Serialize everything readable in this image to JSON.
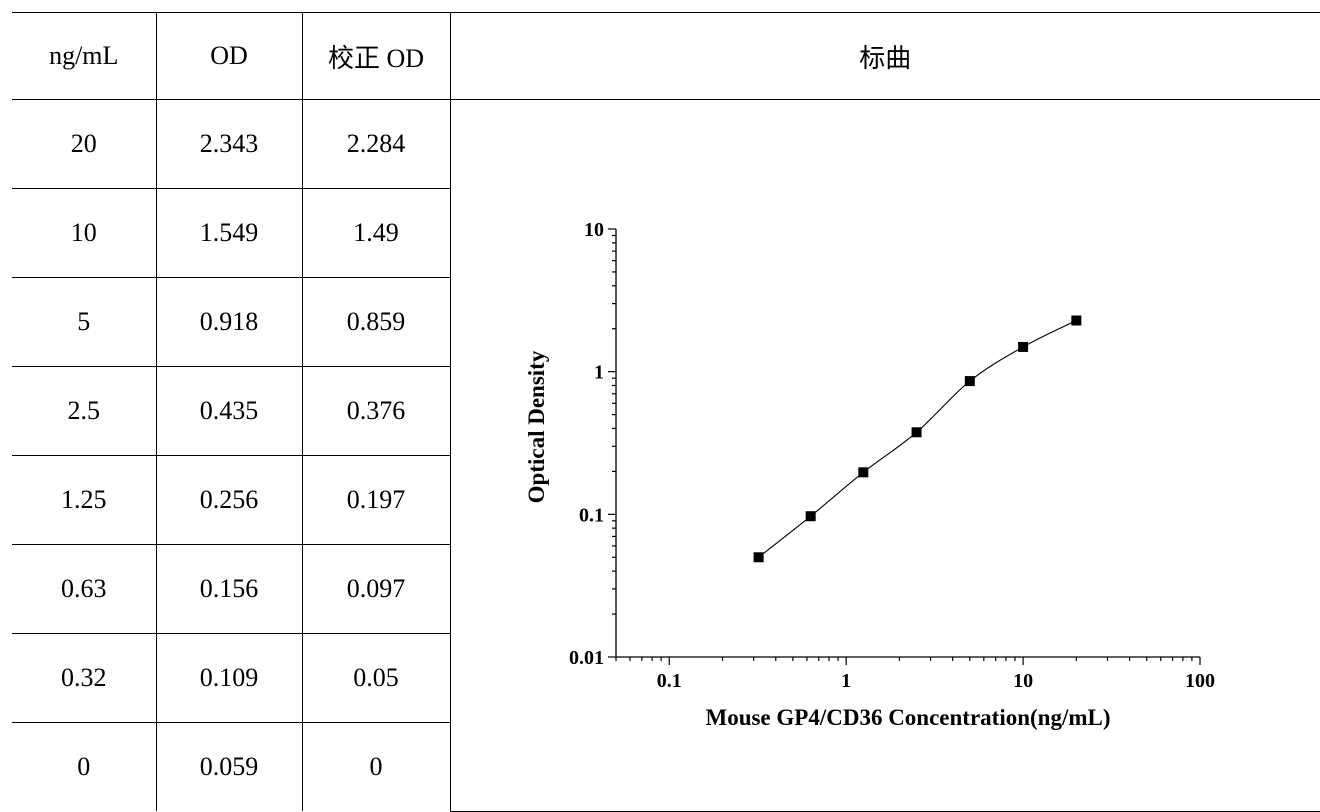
{
  "table": {
    "headers": [
      "ng/mL",
      "OD",
      "校正 OD",
      "标曲"
    ],
    "rows": [
      [
        "20",
        "2.343",
        "2.284"
      ],
      [
        "10",
        "1.549",
        "1.49"
      ],
      [
        "5",
        "0.918",
        "0.859"
      ],
      [
        "2.5",
        "0.435",
        "0.376"
      ],
      [
        "1.25",
        "0.256",
        "0.197"
      ],
      [
        "0.63",
        "0.156",
        "0.097"
      ],
      [
        "0.32",
        "0.109",
        "0.05"
      ],
      [
        "0",
        "0.059",
        "0"
      ]
    ]
  },
  "chart_data": {
    "type": "line",
    "title": "",
    "xlabel": "Mouse GP4/CD36 Concentration(ng/mL)",
    "ylabel": "Optical Density",
    "xscale": "log",
    "yscale": "log",
    "xlim": [
      0.05,
      100
    ],
    "ylim": [
      0.01,
      10
    ],
    "xticks": [
      "0.1",
      "1",
      "10",
      "100"
    ],
    "yticks": [
      "0.01",
      "0.1",
      "1",
      "10"
    ],
    "grid": false,
    "legend": "none",
    "marker": "square",
    "color": "#000000",
    "series": [
      {
        "x": [
          20,
          10,
          5,
          2.5,
          1.25,
          0.63,
          0.32
        ],
        "y": [
          2.284,
          1.49,
          0.859,
          0.376,
          0.197,
          0.097,
          0.05
        ]
      }
    ]
  }
}
